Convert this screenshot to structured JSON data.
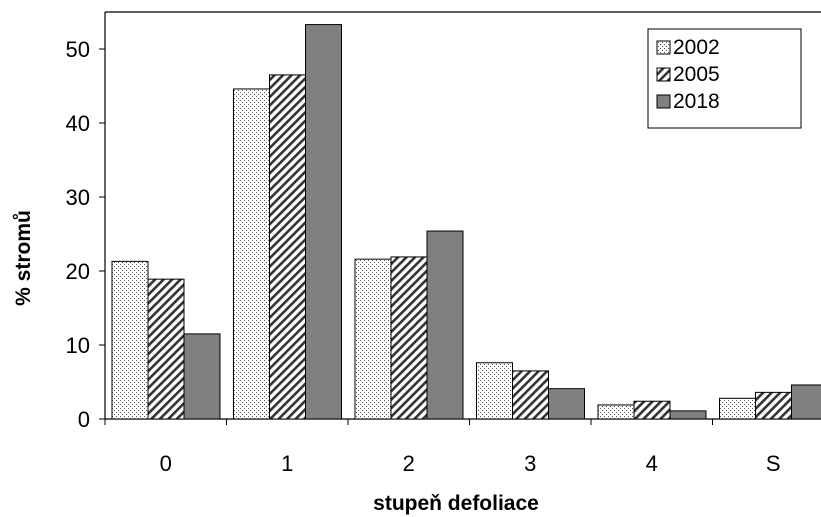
{
  "chart_data": {
    "type": "bar",
    "title": "",
    "xlabel": "stupeň defoliace",
    "ylabel": "% stromů",
    "categories": [
      "0",
      "1",
      "2",
      "3",
      "4",
      "S"
    ],
    "series": [
      {
        "name": "2002",
        "values": [
          21.3,
          44.6,
          21.6,
          7.6,
          1.9,
          2.8
        ],
        "pattern": "dots"
      },
      {
        "name": "2005",
        "values": [
          18.9,
          46.5,
          21.9,
          6.5,
          2.4,
          3.6
        ],
        "pattern": "hatch"
      },
      {
        "name": "2018",
        "values": [
          11.5,
          53.3,
          25.4,
          4.1,
          1.1,
          4.6
        ],
        "pattern": "solid"
      }
    ],
    "ylim": [
      0,
      55
    ],
    "yticks": [
      "0",
      "10",
      "20",
      "30",
      "40",
      "50"
    ],
    "grid": false,
    "legend": "top-right",
    "colors": {
      "solid": "#808080",
      "outline": "#000000",
      "background": "#ffffff"
    }
  }
}
